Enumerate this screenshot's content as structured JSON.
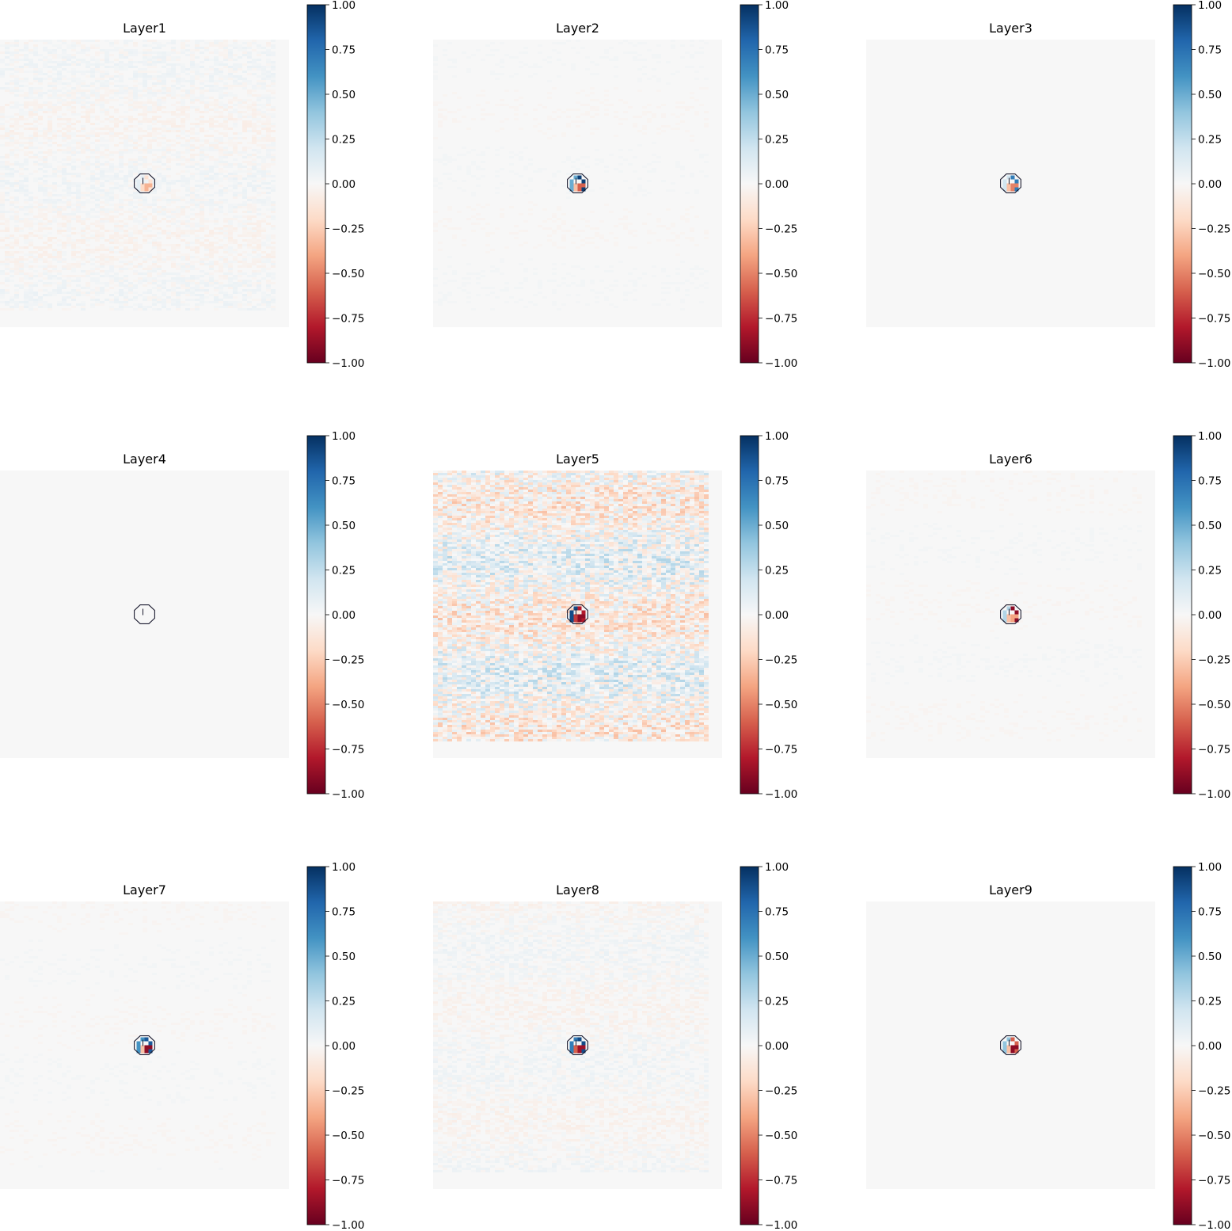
{
  "chart_data": {
    "type": "heatmap",
    "layout": {
      "rows": 3,
      "cols": 3
    },
    "colormap": "RdBu",
    "colormap_stops": [
      "#67001f",
      "#b2182b",
      "#d6604d",
      "#f4a582",
      "#fddbc7",
      "#f7f7f7",
      "#d1e5f0",
      "#92c5de",
      "#4393c3",
      "#2166ac",
      "#053061"
    ],
    "colorbar_ticks": [
      "1.00",
      "0.75",
      "0.50",
      "0.25",
      "0.00",
      "−0.25",
      "−0.50",
      "−0.75",
      "−1.00"
    ],
    "vmin": -1.0,
    "vmax": 1.0,
    "axes_visible": false,
    "panels": [
      {
        "title": "Layer1",
        "noise": 0.05,
        "core_values": [
          -0.15,
          -0.35,
          0.1,
          -0.2
        ]
      },
      {
        "title": "Layer2",
        "noise": 0.02,
        "core_values": [
          0.95,
          -0.6,
          0.5,
          -0.3
        ]
      },
      {
        "title": "Layer3",
        "noise": 0.0,
        "core_values": [
          0.7,
          -0.5,
          0.2,
          -0.3
        ]
      },
      {
        "title": "Layer4",
        "noise": 0.0,
        "core_values": [
          0.0,
          0.0,
          0.0,
          0.0
        ]
      },
      {
        "title": "Layer5",
        "noise": 0.22,
        "core_values": [
          -0.8,
          -0.9,
          0.9,
          -0.7
        ]
      },
      {
        "title": "Layer6",
        "noise": 0.02,
        "core_values": [
          -0.9,
          -0.4,
          0.3,
          -0.3
        ]
      },
      {
        "title": "Layer7",
        "noise": 0.02,
        "core_values": [
          0.85,
          -0.9,
          0.6,
          -0.3
        ]
      },
      {
        "title": "Layer8",
        "noise": 0.05,
        "core_values": [
          0.9,
          -0.85,
          0.7,
          -0.6
        ]
      },
      {
        "title": "Layer9",
        "noise": 0.0,
        "core_values": [
          -0.6,
          -0.9,
          0.4,
          -0.3
        ]
      }
    ]
  }
}
